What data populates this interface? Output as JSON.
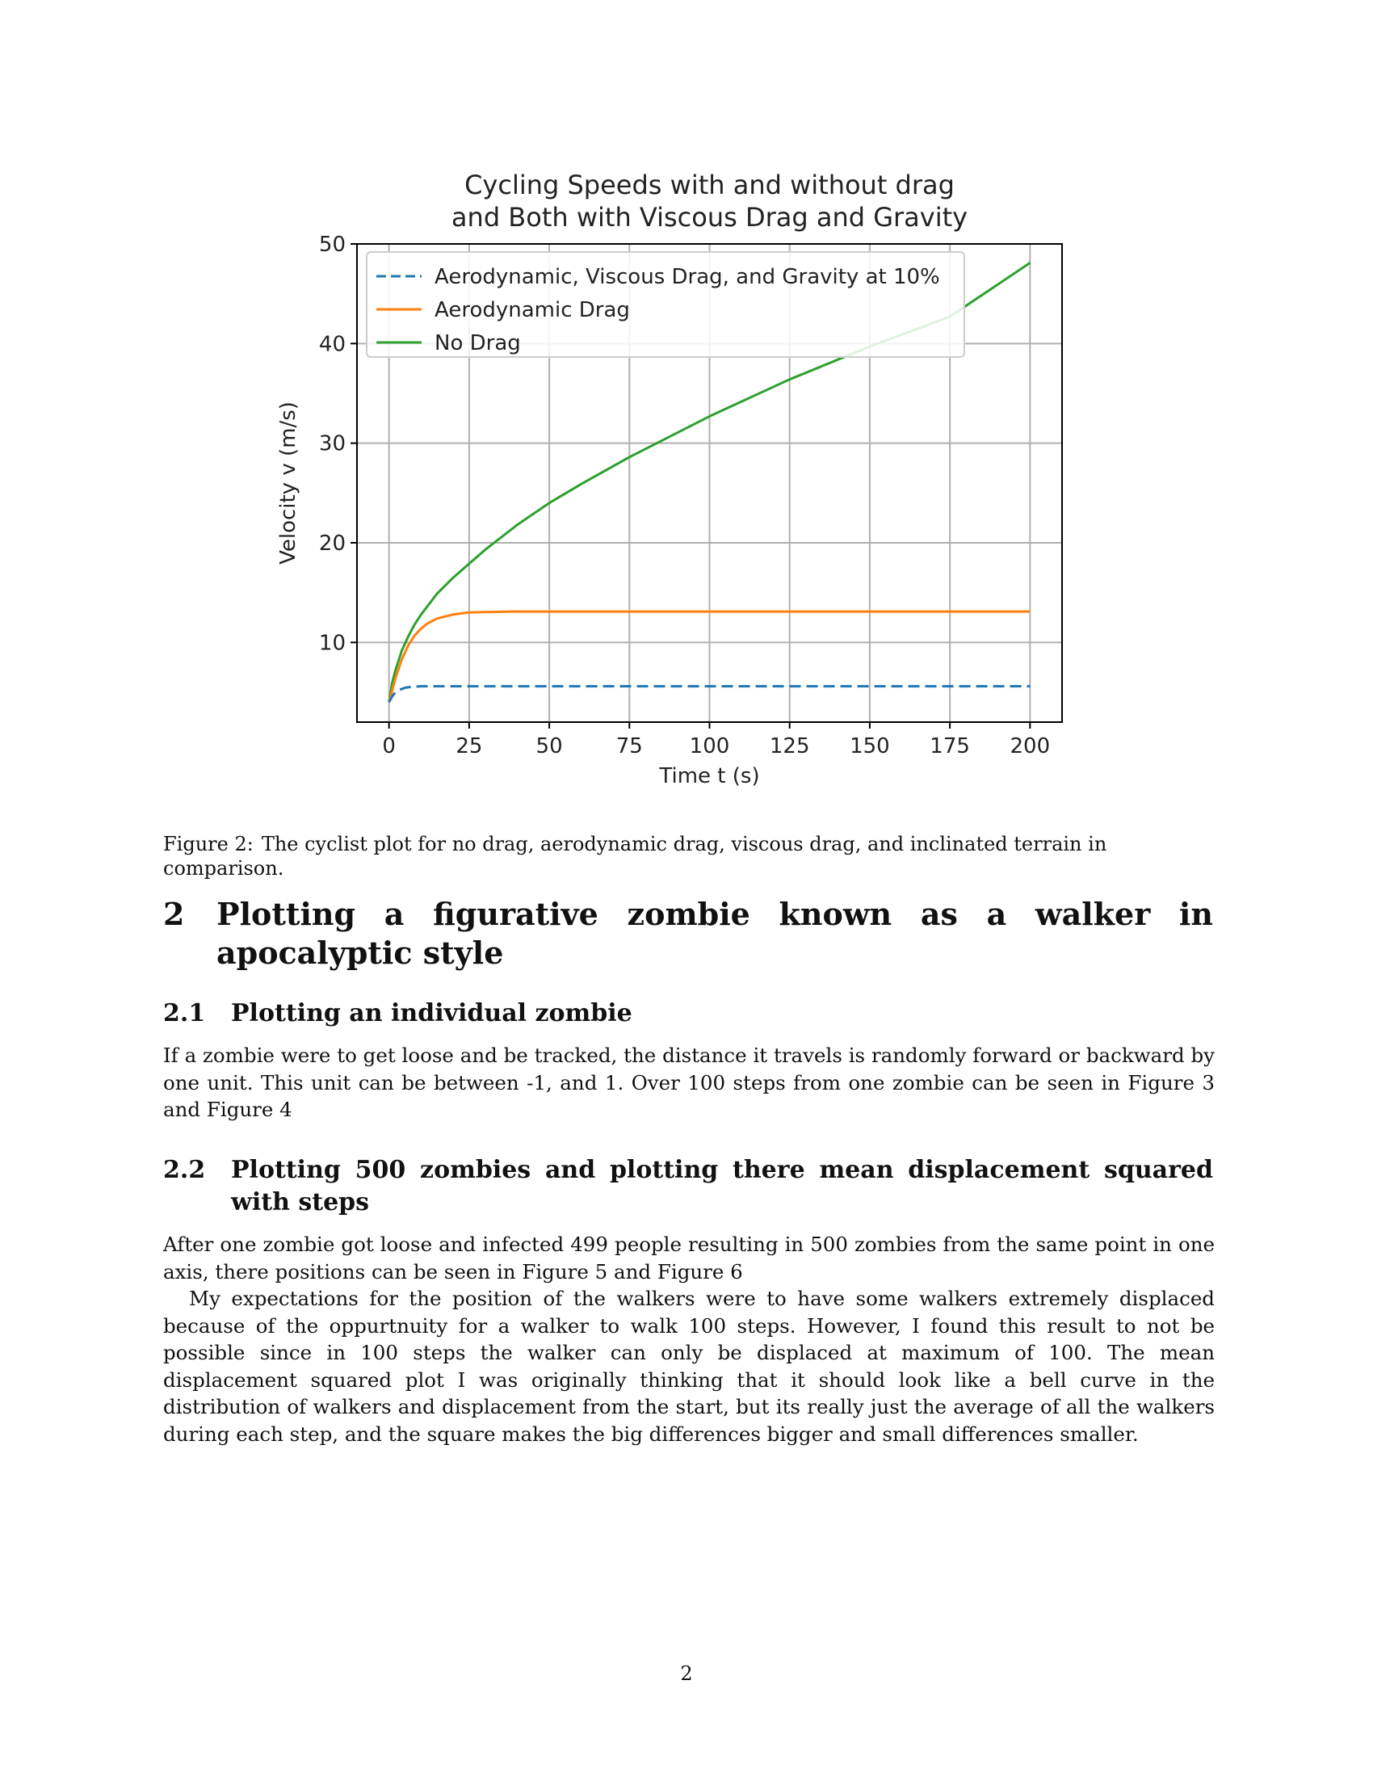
{
  "chart_data": {
    "type": "line",
    "title": [
      "Cycling Speeds with and without drag",
      "and Both with Viscous Drag and Gravity"
    ],
    "xlabel": "Time t (s)",
    "ylabel": "Velocity v (m/s)",
    "xlim": [
      -10,
      210
    ],
    "ylim": [
      2,
      50
    ],
    "xticks": [
      0,
      25,
      50,
      75,
      100,
      125,
      150,
      175,
      200
    ],
    "yticks": [
      10,
      20,
      30,
      40,
      50
    ],
    "grid": true,
    "legend_position": "top-left",
    "series": [
      {
        "name": "Aerodynamic, Viscous Drag, and Gravity at 10%",
        "color": "#1f77b4",
        "style": "dashed",
        "x": [
          0,
          1,
          2,
          3,
          5,
          7,
          10,
          15,
          20,
          30,
          50,
          100,
          150,
          200
        ],
        "y": [
          4.0,
          4.6,
          5.0,
          5.2,
          5.45,
          5.55,
          5.6,
          5.6,
          5.6,
          5.6,
          5.6,
          5.6,
          5.6,
          5.6
        ]
      },
      {
        "name": "Aerodynamic Drag",
        "color": "#ff7f0e",
        "style": "solid",
        "x": [
          0,
          2,
          4,
          6,
          8,
          10,
          12,
          15,
          20,
          25,
          30,
          40,
          50,
          75,
          100,
          150,
          200
        ],
        "y": [
          4.0,
          6.4,
          8.3,
          9.7,
          10.7,
          11.4,
          11.9,
          12.4,
          12.8,
          13.0,
          13.05,
          13.1,
          13.1,
          13.1,
          13.1,
          13.1,
          13.1
        ]
      },
      {
        "name": "No Drag",
        "color": "#2ca02c",
        "style": "solid",
        "x": [
          0,
          1,
          2,
          4,
          6,
          8,
          10,
          15,
          20,
          25,
          30,
          40,
          50,
          60,
          75,
          100,
          125,
          150,
          175,
          200
        ],
        "y": [
          4.0,
          6.0,
          7.2,
          9.2,
          10.6,
          11.8,
          12.8,
          14.9,
          16.5,
          17.9,
          19.3,
          21.8,
          24.0,
          25.9,
          28.6,
          32.7,
          36.4,
          39.7,
          42.7,
          48.1
        ]
      }
    ]
  },
  "caption": {
    "label": "Figure 2:",
    "text": "The cyclist plot for no drag, aerodynamic drag, viscous drag, and inclinated terrain in comparison."
  },
  "section_2": {
    "number": "2",
    "title": "Plotting a figurative zombie known as a walker in apocalyptic style"
  },
  "subsection_2_1": {
    "number": "2.1",
    "title": "Plotting an individual zombie",
    "paragraph": "If a zombie were to get loose and be tracked, the distance it travels is randomly forward or backward by one unit. This unit can be between -1, and 1. Over 100 steps from one zombie can be seen in Figure 3 and Figure 4"
  },
  "subsection_2_2": {
    "number": "2.2",
    "title": "Plotting 500 zombies and plotting there mean displacement squared with steps",
    "paragraph_1": "After one zombie got loose and infected 499 people resulting in 500 zombies from the same point in one axis, there positions can be seen in Figure 5 and Figure 6",
    "paragraph_2": "My expectations for the position of the walkers were to have some walkers extremely displaced because of the oppurtnuity for a walker to walk 100 steps. However, I found this result to not be possible since in 100 steps the walker can only be displaced at maximum of 100. The mean displacement squared plot I was originally thinking that it should look like a bell curve in the distribution of walkers and displacement from the start, but its really just the average of all the walkers during each step, and the square makes the big differences bigger and small differences smaller."
  },
  "page_number": "2"
}
